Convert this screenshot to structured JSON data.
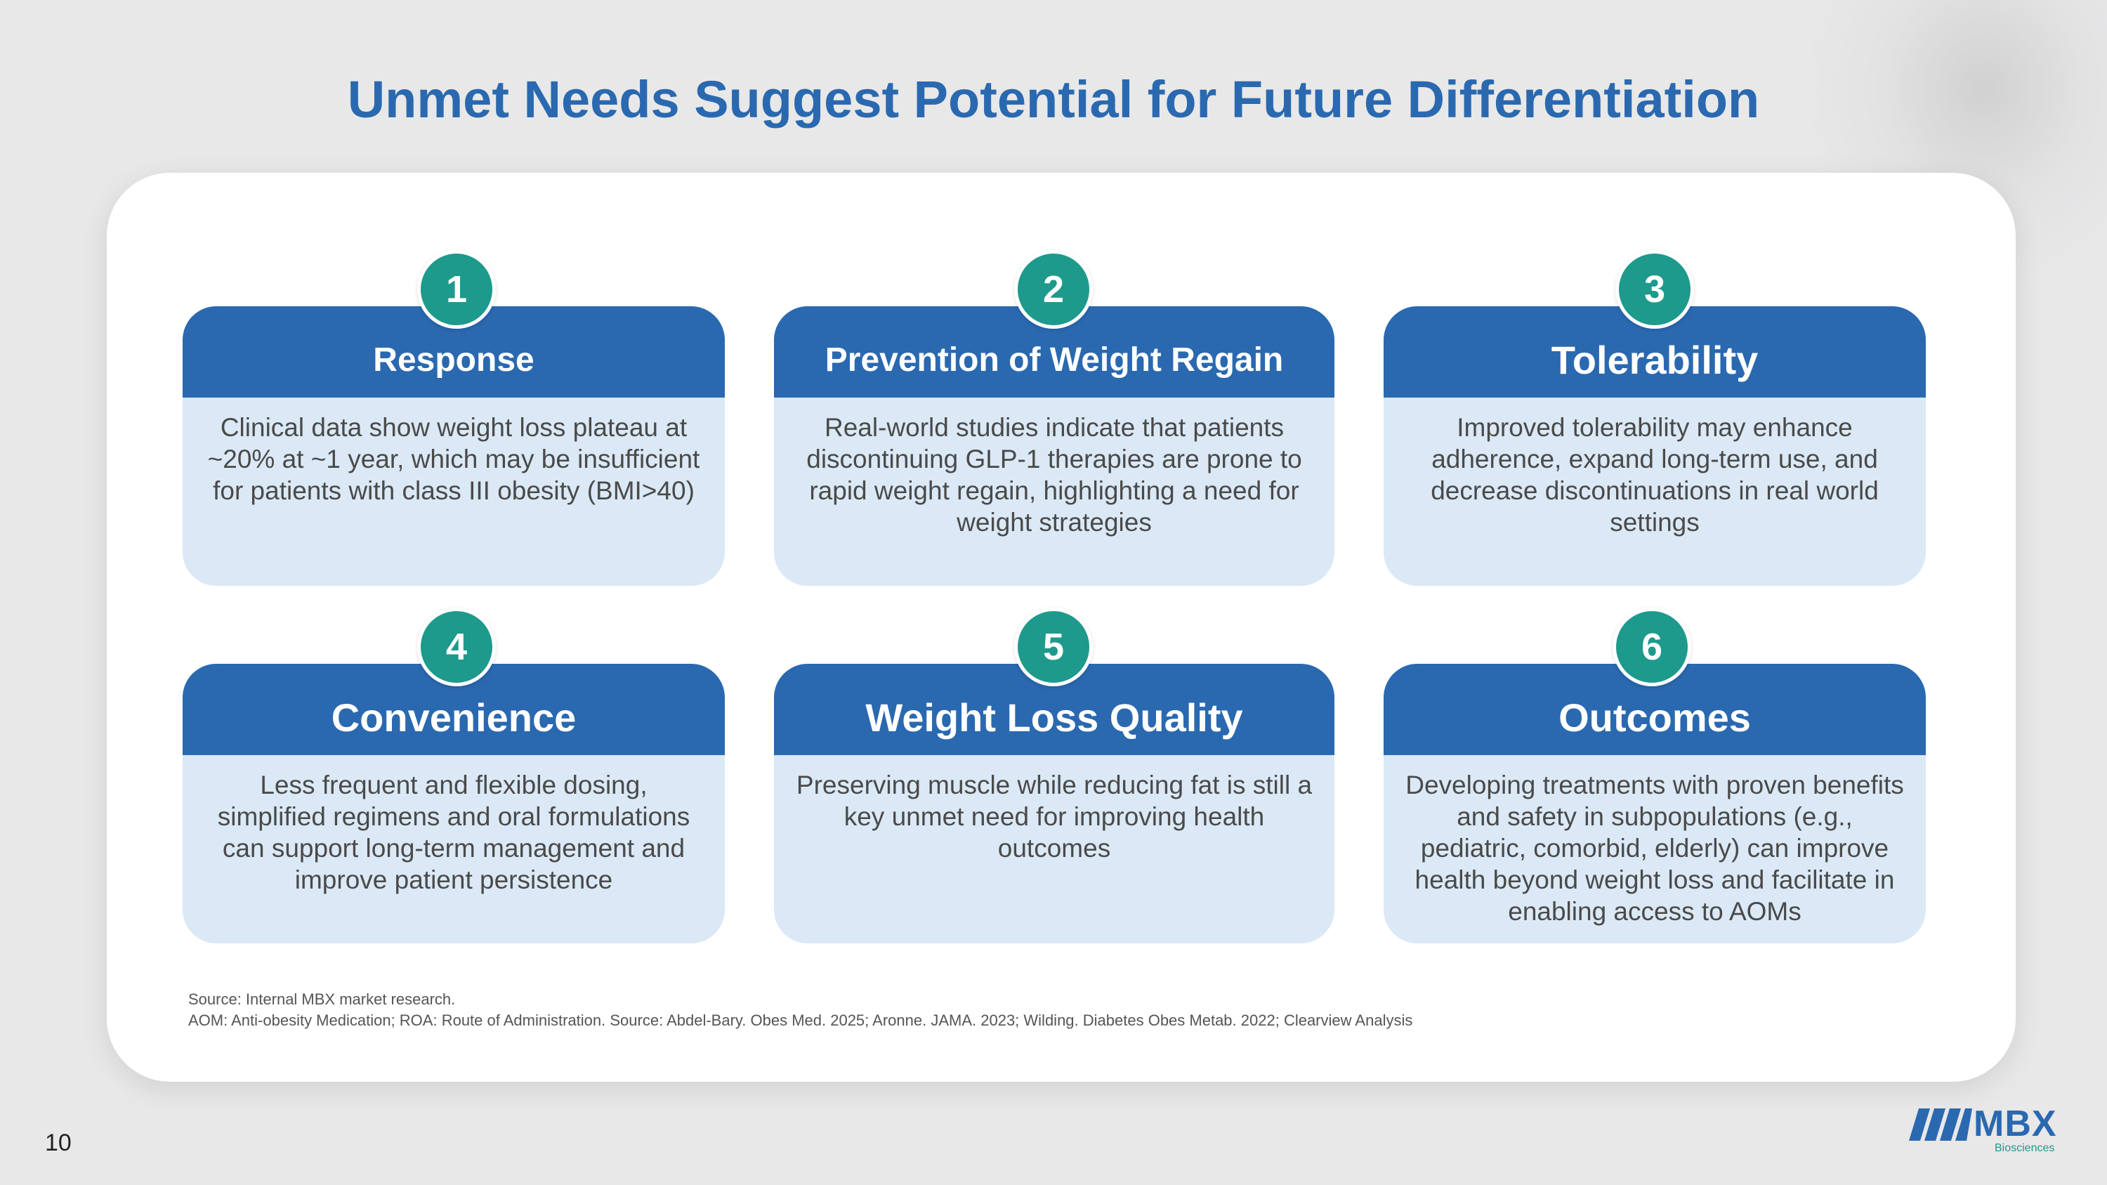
{
  "title": "Unmet Needs Suggest Potential for Future Differentiation",
  "cards": [
    {
      "number": "1",
      "heading": "Response",
      "body": "Clinical data show weight loss plateau at ~20% at ~1 year, which may be insufficient for patients with class III obesity (BMI>40)"
    },
    {
      "number": "2",
      "heading": "Prevention of Weight Regain",
      "body": "Real-world studies indicate that patients discontinuing GLP-1 therapies are prone to rapid weight regain, highlighting a need for weight  strategies"
    },
    {
      "number": "3",
      "heading": "Tolerability",
      "body": "Improved tolerability may enhance adherence, expand long-term use, and decrease discontinuations in real world settings"
    },
    {
      "number": "4",
      "heading": "Convenience",
      "body": "Less frequent and flexible dosing, simplified  regimens and oral formulations can support long-term management and improve patient persistence"
    },
    {
      "number": "5",
      "heading": "Weight Loss Quality",
      "body": "Preserving muscle while reducing fat is still a key unmet need for improving health outcomes"
    },
    {
      "number": "6",
      "heading": "Outcomes",
      "body": "Developing treatments with proven benefits and safety in subpopulations (e.g., pediatric, comorbid, elderly) can improve health beyond weight loss and facilitate in enabling access to AOMs"
    }
  ],
  "footnotes": {
    "line1": "Source: Internal MBX market research.",
    "line2": "AOM: Anti-obesity Medication; ROA: Route of Administration. Source: Abdel-Bary. Obes Med. 2025; Aronne. JAMA. 2023; Wilding. Diabetes Obes Metab. 2022; Clearview Analysis"
  },
  "page_number": "10",
  "logo": {
    "name": "MBX",
    "subtitle": "Biosciences"
  },
  "colors": {
    "title_blue": "#2a68b0",
    "header_blue": "#2a68b0",
    "card_body_bg": "#dbe8f5",
    "badge_teal": "#1d9a8c",
    "background": "#e8e8e9"
  }
}
